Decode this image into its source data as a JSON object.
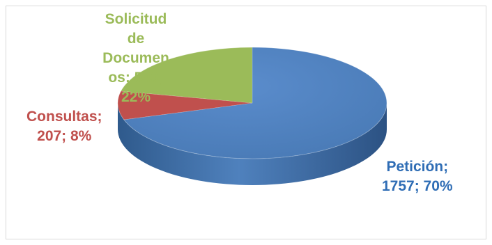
{
  "chart_data": {
    "type": "pie",
    "title": "",
    "slices": [
      {
        "name": "Petición",
        "value": 1757,
        "percent": 70,
        "label": "Petición;\n1757; 70%",
        "color": "#4f81bd"
      },
      {
        "name": "Consultas",
        "value": 207,
        "percent": 8,
        "label": "Consultas;\n207; 8%",
        "color": "#c0504d"
      },
      {
        "name": "Solicitud de Documentos",
        "value": 540,
        "percent": 22,
        "label": "Solicitud\nde\nDocumen\nos; 540;\n22%",
        "color": "#9bbb59"
      }
    ],
    "style": "3d",
    "legend": "none"
  }
}
